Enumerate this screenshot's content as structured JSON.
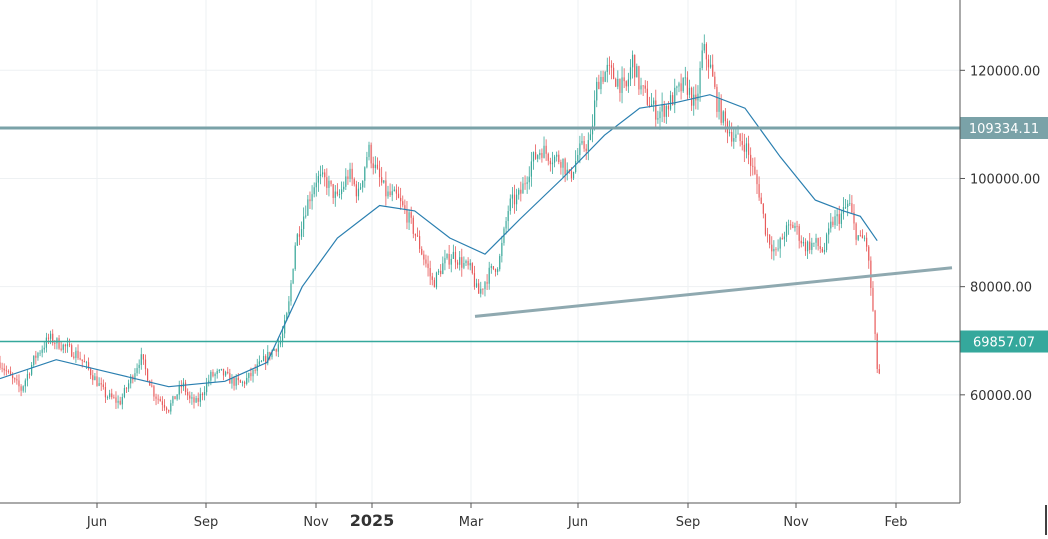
{
  "chart_data": {
    "type": "candlestick",
    "x_tick_labels": [
      "Jun",
      "Sep",
      "Nov",
      "2025",
      "Mar",
      "Jun",
      "Sep",
      "Nov",
      "Feb"
    ],
    "y_tick_labels": [
      "120000.00",
      "100000.00",
      "80000.00",
      "60000.00"
    ],
    "y_ticks": [
      120000,
      100000,
      80000,
      60000
    ],
    "ylim": [
      40000,
      133000
    ],
    "grid": true,
    "colors": {
      "up": "#3aa89a",
      "down": "#e85a5a",
      "moving_average": "#2a7fb0",
      "level_upper": "#7aa2a8",
      "level_lower": "#35a89c",
      "trendline": "#8fa9b0",
      "axis_text": "#333333",
      "grid": "#eef1f3"
    },
    "levels": [
      {
        "value": 109334.11,
        "label": "109334.11"
      },
      {
        "value": 69857.07,
        "label": "69857.07"
      }
    ],
    "trendline": {
      "from": {
        "x": "Mar",
        "y": 74500
      },
      "to": {
        "x": "Feb",
        "y": 83500
      }
    },
    "price_path": [
      {
        "x": 0,
        "y": 66000
      },
      {
        "x": 8,
        "y": 63000
      },
      {
        "x": 15,
        "y": 61000
      },
      {
        "x": 25,
        "y": 67000
      },
      {
        "x": 35,
        "y": 70500
      },
      {
        "x": 45,
        "y": 69000
      },
      {
        "x": 55,
        "y": 67500
      },
      {
        "x": 65,
        "y": 64000
      },
      {
        "x": 75,
        "y": 60000
      },
      {
        "x": 85,
        "y": 58500
      },
      {
        "x": 95,
        "y": 64000
      },
      {
        "x": 100,
        "y": 67000
      },
      {
        "x": 110,
        "y": 60000
      },
      {
        "x": 120,
        "y": 57500
      },
      {
        "x": 130,
        "y": 62000
      },
      {
        "x": 135,
        "y": 59000
      },
      {
        "x": 140,
        "y": 58500
      },
      {
        "x": 145,
        "y": 61000
      },
      {
        "x": 150,
        "y": 63500
      },
      {
        "x": 158,
        "y": 64000
      },
      {
        "x": 165,
        "y": 62500
      },
      {
        "x": 172,
        "y": 62000
      },
      {
        "x": 180,
        "y": 64000
      },
      {
        "x": 190,
        "y": 67000
      },
      {
        "x": 200,
        "y": 70000
      },
      {
        "x": 205,
        "y": 75500
      },
      {
        "x": 210,
        "y": 88000
      },
      {
        "x": 218,
        "y": 95000
      },
      {
        "x": 225,
        "y": 100000
      },
      {
        "x": 232,
        "y": 99500
      },
      {
        "x": 240,
        "y": 96000
      },
      {
        "x": 248,
        "y": 101000
      },
      {
        "x": 255,
        "y": 97000
      },
      {
        "x": 262,
        "y": 105500
      },
      {
        "x": 268,
        "y": 101000
      },
      {
        "x": 275,
        "y": 97000
      },
      {
        "x": 282,
        "y": 96500
      },
      {
        "x": 290,
        "y": 93000
      },
      {
        "x": 295,
        "y": 90000
      },
      {
        "x": 302,
        "y": 85000
      },
      {
        "x": 308,
        "y": 80500
      },
      {
        "x": 315,
        "y": 84000
      },
      {
        "x": 322,
        "y": 86000
      },
      {
        "x": 328,
        "y": 84500
      },
      {
        "x": 335,
        "y": 83000
      },
      {
        "x": 340,
        "y": 78500
      },
      {
        "x": 348,
        "y": 82500
      },
      {
        "x": 355,
        "y": 84500
      },
      {
        "x": 362,
        "y": 95000
      },
      {
        "x": 370,
        "y": 97000
      },
      {
        "x": 378,
        "y": 103000
      },
      {
        "x": 385,
        "y": 105500
      },
      {
        "x": 392,
        "y": 104000
      },
      {
        "x": 400,
        "y": 103500
      },
      {
        "x": 405,
        "y": 100000
      },
      {
        "x": 412,
        "y": 105000
      },
      {
        "x": 420,
        "y": 107000
      },
      {
        "x": 425,
        "y": 118000
      },
      {
        "x": 432,
        "y": 120000
      },
      {
        "x": 440,
        "y": 118000
      },
      {
        "x": 445,
        "y": 116000
      },
      {
        "x": 450,
        "y": 122000
      },
      {
        "x": 455,
        "y": 117000
      },
      {
        "x": 462,
        "y": 114000
      },
      {
        "x": 468,
        "y": 112000
      },
      {
        "x": 475,
        "y": 113500
      },
      {
        "x": 482,
        "y": 116000
      },
      {
        "x": 488,
        "y": 117500
      },
      {
        "x": 495,
        "y": 113000
      },
      {
        "x": 500,
        "y": 124000
      },
      {
        "x": 505,
        "y": 121000
      },
      {
        "x": 510,
        "y": 114000
      },
      {
        "x": 515,
        "y": 110500
      },
      {
        "x": 520,
        "y": 108500
      },
      {
        "x": 525,
        "y": 107000
      },
      {
        "x": 530,
        "y": 106500
      },
      {
        "x": 535,
        "y": 102000
      },
      {
        "x": 540,
        "y": 97500
      },
      {
        "x": 545,
        "y": 90000
      },
      {
        "x": 552,
        "y": 86000
      },
      {
        "x": 558,
        "y": 90000
      },
      {
        "x": 565,
        "y": 91500
      },
      {
        "x": 572,
        "y": 87500
      },
      {
        "x": 580,
        "y": 88000
      },
      {
        "x": 586,
        "y": 86500
      },
      {
        "x": 592,
        "y": 92000
      },
      {
        "x": 598,
        "y": 93000
      },
      {
        "x": 604,
        "y": 95500
      },
      {
        "x": 608,
        "y": 90500
      },
      {
        "x": 612,
        "y": 88500
      },
      {
        "x": 616,
        "y": 89000
      },
      {
        "x": 618,
        "y": 84000
      },
      {
        "x": 620,
        "y": 78500
      },
      {
        "x": 622,
        "y": 72000
      },
      {
        "x": 624,
        "y": 65000
      },
      {
        "x": 626,
        "y": 63500
      }
    ],
    "moving_average_path": [
      {
        "x": 0,
        "y": 63000
      },
      {
        "x": 40,
        "y": 66500
      },
      {
        "x": 80,
        "y": 64000
      },
      {
        "x": 120,
        "y": 61500
      },
      {
        "x": 160,
        "y": 62500
      },
      {
        "x": 190,
        "y": 66000
      },
      {
        "x": 215,
        "y": 80000
      },
      {
        "x": 240,
        "y": 89000
      },
      {
        "x": 270,
        "y": 95000
      },
      {
        "x": 295,
        "y": 94000
      },
      {
        "x": 320,
        "y": 89000
      },
      {
        "x": 345,
        "y": 86000
      },
      {
        "x": 370,
        "y": 92500
      },
      {
        "x": 400,
        "y": 100000
      },
      {
        "x": 430,
        "y": 108000
      },
      {
        "x": 455,
        "y": 113000
      },
      {
        "x": 480,
        "y": 114000
      },
      {
        "x": 505,
        "y": 115500
      },
      {
        "x": 530,
        "y": 113000
      },
      {
        "x": 555,
        "y": 104000
      },
      {
        "x": 580,
        "y": 96000
      },
      {
        "x": 600,
        "y": 94000
      },
      {
        "x": 612,
        "y": 93000
      },
      {
        "x": 624,
        "y": 88500
      }
    ]
  }
}
